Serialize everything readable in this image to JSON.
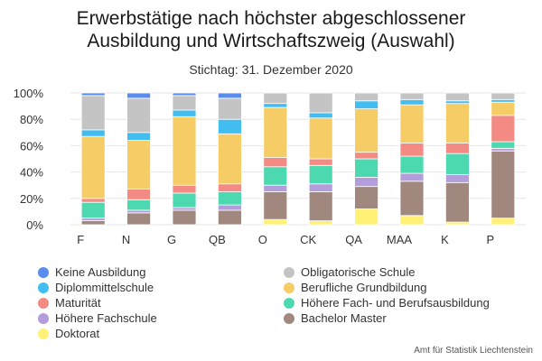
{
  "title_line1": "Erwerbstätige nach höchster abgeschlossener",
  "title_line2": "Ausbildung und Wirtschaftszweig (Auswahl)",
  "subtitle": "Stichtag: 31. Dezember 2020",
  "source": "Amt für Statistik Liechtenstein",
  "chart_data": {
    "type": "bar",
    "stacked": true,
    "categories": [
      "F",
      "N",
      "G",
      "QB",
      "O",
      "CK",
      "QA",
      "MAA",
      "K",
      "P"
    ],
    "ylim": [
      0,
      100
    ],
    "yticks": [
      "0%",
      "20%",
      "40%",
      "60%",
      "80%",
      "100%"
    ],
    "grid": true,
    "legend_position": "bottom",
    "series": [
      {
        "name": "Doktorat",
        "color": "#fff176",
        "values": [
          0,
          0,
          0,
          0,
          4,
          3,
          12,
          7,
          2,
          5
        ]
      },
      {
        "name": "Bachelor Master",
        "color": "#a1887f",
        "values": [
          3,
          9,
          11,
          11,
          21,
          22,
          17,
          26,
          30,
          51
        ]
      },
      {
        "name": "Höhere Fachschule",
        "color": "#b39ddb",
        "values": [
          2,
          2,
          2,
          4,
          5,
          6,
          7,
          6,
          6,
          2
        ]
      },
      {
        "name": "Höhere Fach- und Berufsausbildung",
        "color": "#4dd9b0",
        "values": [
          12,
          8,
          11,
          10,
          14,
          14,
          14,
          13,
          16,
          5
        ]
      },
      {
        "name": "Maturität",
        "color": "#f48a84",
        "values": [
          3,
          8,
          6,
          6,
          7,
          5,
          5,
          10,
          8,
          20
        ]
      },
      {
        "name": "Berufliche Grundbildung",
        "color": "#f5cc66",
        "values": [
          47,
          37,
          52,
          38,
          38,
          31,
          33,
          29,
          30,
          10
        ]
      },
      {
        "name": "Diplommittelschule",
        "color": "#42bdf0",
        "values": [
          5,
          6,
          5,
          11,
          3,
          4,
          6,
          4,
          2,
          2
        ]
      },
      {
        "name": "Obligatorische Schule",
        "color": "#c4c4c4",
        "values": [
          26,
          26,
          11,
          16,
          8,
          15,
          6,
          5,
          6,
          5
        ]
      },
      {
        "name": "Keine Ausbildung",
        "color": "#5b8def",
        "values": [
          2,
          4,
          2,
          4,
          0,
          0,
          0,
          0,
          0,
          0
        ]
      }
    ]
  },
  "legend": [
    {
      "label": "Keine Ausbildung",
      "color": "#5b8def"
    },
    {
      "label": "Obligatorische Schule",
      "color": "#c4c4c4"
    },
    {
      "label": "Diplommittelschule",
      "color": "#42bdf0"
    },
    {
      "label": "Berufliche Grundbildung",
      "color": "#f5cc66"
    },
    {
      "label": "Maturität",
      "color": "#f48a84"
    },
    {
      "label": "Höhere Fach- und Berufsausbildung",
      "color": "#4dd9b0"
    },
    {
      "label": "Höhere Fachschule",
      "color": "#b39ddb"
    },
    {
      "label": "Bachelor Master",
      "color": "#a1887f"
    },
    {
      "label": "Doktorat",
      "color": "#fff176"
    }
  ]
}
